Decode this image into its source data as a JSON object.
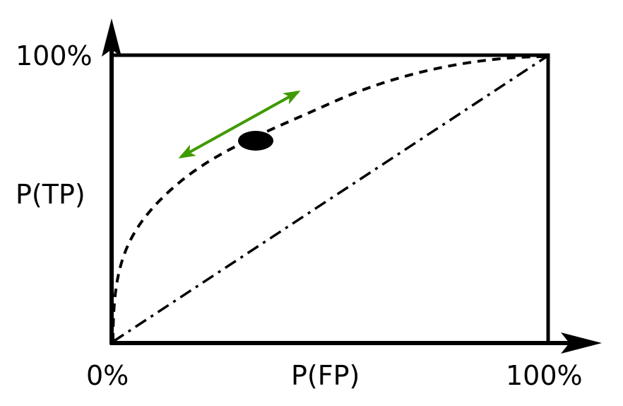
{
  "labels": {
    "y_top": "100%",
    "y_axis": "P(TP)",
    "x_origin": "0%",
    "x_axis": "P(FP)",
    "x_right": "100%"
  },
  "curves": {
    "roc_curve": {
      "style": "dashed",
      "color": "#000000"
    },
    "chance_diagonal": {
      "style": "dash-dot",
      "color": "#000000"
    }
  },
  "operating_point": {
    "color": "#000000"
  },
  "threshold_arrow": {
    "color": "#3f9a00",
    "direction": "double-headed"
  },
  "axes": {
    "color": "#000000"
  }
}
